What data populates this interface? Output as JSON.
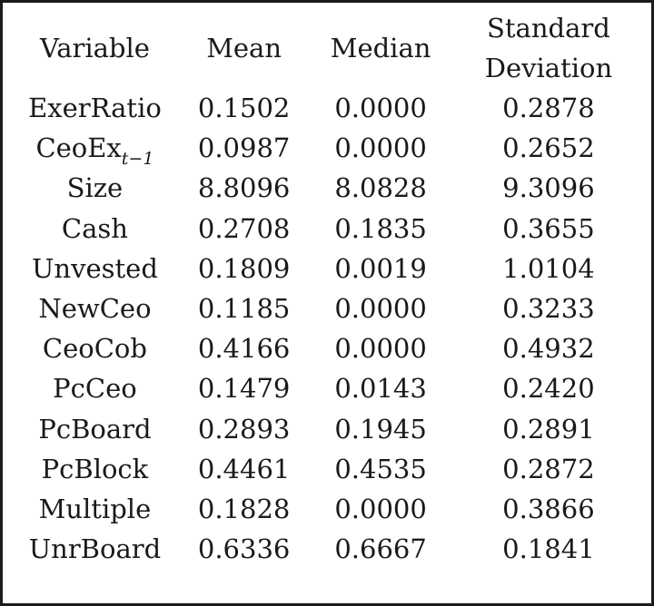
{
  "table": {
    "headers": {
      "variable": "Variable",
      "mean": "Mean",
      "median": "Median",
      "sd_line1": "Standard",
      "sd_line2": "Deviation"
    },
    "rows": [
      {
        "variable": "ExerRatio",
        "mean": "0.1502",
        "median": "0.0000",
        "sd": "0.2878"
      },
      {
        "variable": "CeoEx",
        "variable_sub": "t−1",
        "mean": "0.0987",
        "median": "0.0000",
        "sd": "0.2652"
      },
      {
        "variable": "Size",
        "mean": "8.8096",
        "median": "8.0828",
        "sd": "9.3096"
      },
      {
        "variable": "Cash",
        "mean": "0.2708",
        "median": "0.1835",
        "sd": "0.3655"
      },
      {
        "variable": "Unvested",
        "mean": "0.1809",
        "median": "0.0019",
        "sd": "1.0104"
      },
      {
        "variable": "NewCeo",
        "mean": "0.1185",
        "median": "0.0000",
        "sd": "0.3233"
      },
      {
        "variable": "CeoCob",
        "mean": "0.4166",
        "median": "0.0000",
        "sd": "0.4932"
      },
      {
        "variable": "PcCeo",
        "mean": "0.1479",
        "median": "0.0143",
        "sd": "0.2420"
      },
      {
        "variable": "PcBoard",
        "mean": "0.2893",
        "median": "0.1945",
        "sd": "0.2891"
      },
      {
        "variable": "PcBlock",
        "mean": "0.4461",
        "median": "0.4535",
        "sd": "0.2872"
      },
      {
        "variable": "Multiple",
        "mean": "0.1828",
        "median": "0.0000",
        "sd": "0.3866"
      },
      {
        "variable": "UnrBoard",
        "mean": "0.6336",
        "median": "0.6667",
        "sd": "0.1841"
      }
    ]
  }
}
